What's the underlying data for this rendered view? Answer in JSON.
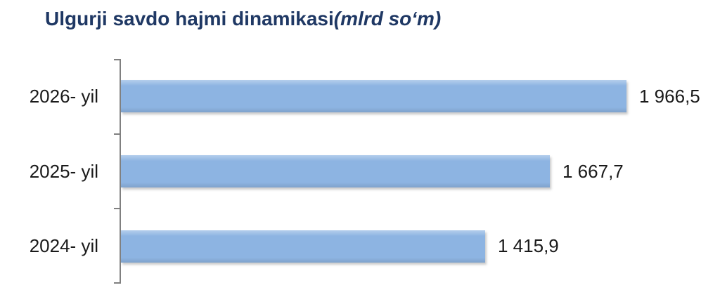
{
  "title": {
    "text": "Ulgurji savdo hajmi dinamikasi",
    "unit": "(mlrd so‘m)"
  },
  "chart_data": {
    "type": "bar",
    "orientation": "horizontal",
    "title": "Ulgurji savdo hajmi dinamikasi",
    "title_unit": "(mlrd so‘m)",
    "unit": "mlrd so‘m",
    "categories": [
      "2026- yil",
      "2025- yil",
      "2024- yil"
    ],
    "values": [
      1966.5,
      1667.7,
      1415.9
    ],
    "value_labels": [
      "1 966,5",
      "1 667,7",
      "1 415,9"
    ],
    "xlabel": "",
    "ylabel": "",
    "legend": "none",
    "grid": false,
    "axis_baseline": 0,
    "colors": {
      "bar": "#8db4e2",
      "axis": "#808080",
      "title": "#1f3864",
      "text": "#1a1a1a"
    }
  }
}
